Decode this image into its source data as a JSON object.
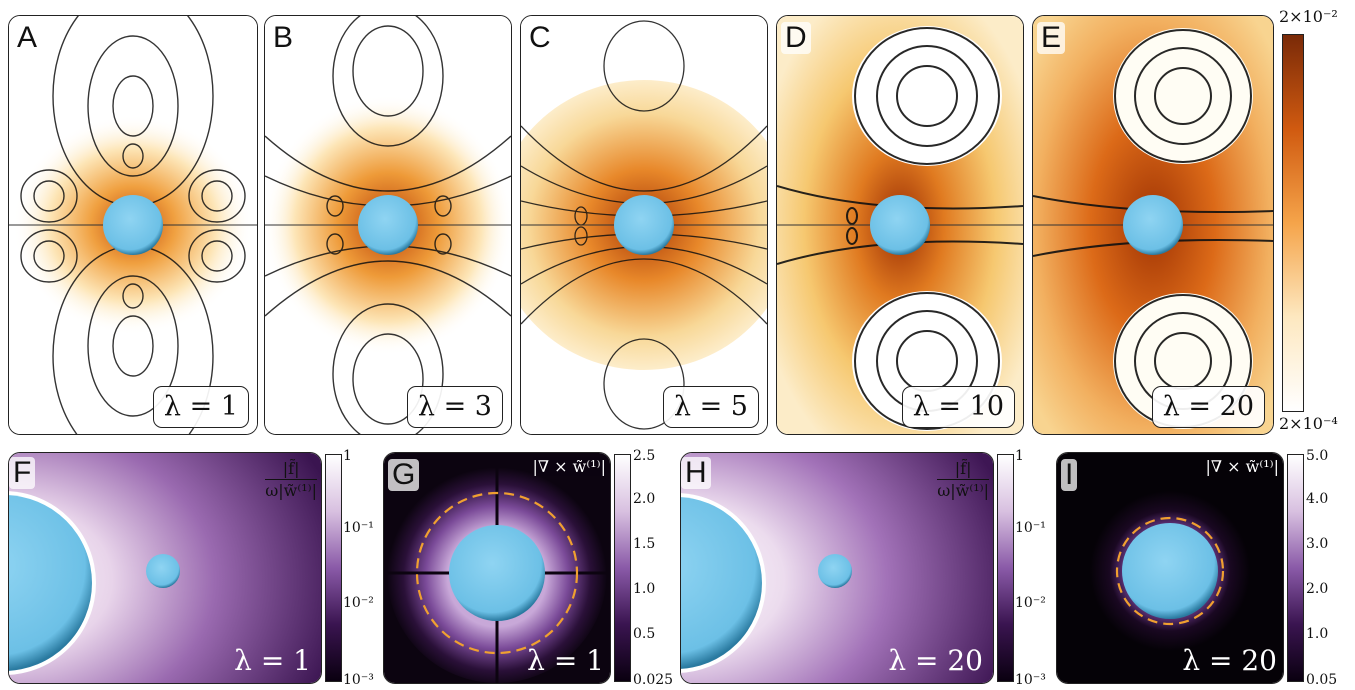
{
  "top_panels": [
    {
      "label": "A",
      "lambda_text": "λ = 1"
    },
    {
      "label": "B",
      "lambda_text": "λ = 3"
    },
    {
      "label": "C",
      "lambda_text": "λ = 5"
    },
    {
      "label": "D",
      "lambda_text": "λ = 10"
    },
    {
      "label": "E",
      "lambda_text": "λ = 20"
    }
  ],
  "top_colorbar": {
    "max": "2×10⁻²",
    "min": "2×10⁻⁴",
    "colors": [
      "#ffffff",
      "#fde8c0",
      "#f5a44a",
      "#d05a10",
      "#7a2a08"
    ]
  },
  "bottom_panels": [
    {
      "label": "F",
      "lambda_text": "λ = 1",
      "formula_num": "|f̃|",
      "formula_den": "ω|w̃⁽¹⁾|",
      "colorbar_ticks": [
        "1",
        "10⁻¹",
        "10⁻²",
        "10⁻³"
      ]
    },
    {
      "label": "G",
      "lambda_text": "λ = 1",
      "formula": "|∇ × w̃⁽¹⁾|",
      "colorbar_ticks": [
        "2.5",
        "2.0",
        "1.5",
        "1.0",
        "0.5",
        "0.025"
      ]
    },
    {
      "label": "H",
      "lambda_text": "λ = 20",
      "formula_num": "|f̃|",
      "formula_den": "ω|w̃⁽¹⁾|",
      "colorbar_ticks": [
        "1",
        "10⁻¹",
        "10⁻²",
        "10⁻³"
      ]
    },
    {
      "label": "I",
      "lambda_text": "λ = 20",
      "formula": "|∇ × w̃⁽¹⁾|",
      "colorbar_ticks": [
        "5.0",
        "4.0",
        "3.0",
        "2.0",
        "1.0",
        "0.05"
      ]
    }
  ],
  "colors": {
    "sphere": "#7cc8ea",
    "purple_dark": "#1a0a2a",
    "purple_mid": "#6a3a8a",
    "dashed_ring": "#f0a030",
    "stream": "#111111"
  }
}
